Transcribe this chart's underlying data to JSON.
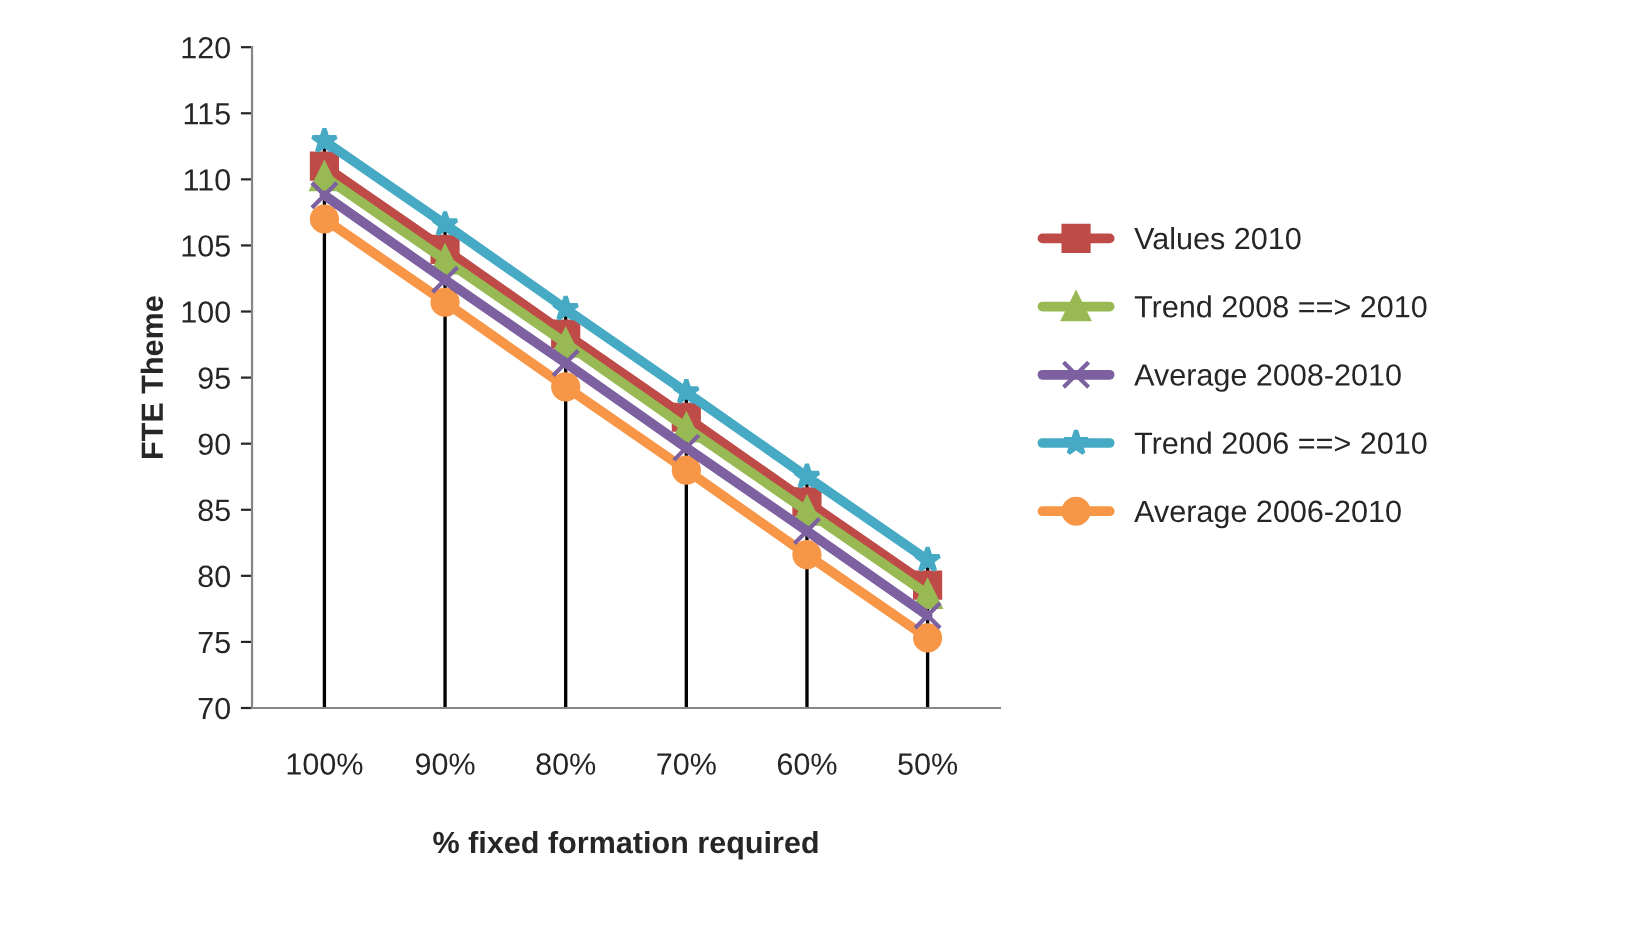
{
  "chart_data": {
    "type": "line",
    "xlabel": "% fixed formation required",
    "ylabel": "FTE Theme",
    "categories": [
      "100%",
      "90%",
      "80%",
      "70%",
      "60%",
      "50%"
    ],
    "ylim": [
      70,
      120
    ],
    "yticks": [
      70,
      75,
      80,
      85,
      90,
      95,
      100,
      105,
      110,
      115,
      120
    ],
    "grid": false,
    "legend": "right",
    "line_style": "solid",
    "series": [
      {
        "name": "Values 2010",
        "color": "#be4b48",
        "marker": "square",
        "values": [
          111,
          104.7,
          98.3,
          92,
          85.6,
          79.3
        ]
      },
      {
        "name": "Trend 2008 ==> 2010",
        "color": "#98b954",
        "marker": "triangle",
        "values": [
          110.2,
          103.9,
          97.6,
          91.2,
          84.9,
          78.6
        ]
      },
      {
        "name": "Average 2008-2010",
        "color": "#7d60a0",
        "marker": "cross",
        "values": [
          108.8,
          102.4,
          96.1,
          89.7,
          83.4,
          77
        ]
      },
      {
        "name": "Trend 2006 ==> 2010",
        "color": "#46aac5",
        "marker": "star",
        "values": [
          112.9,
          106.6,
          100.2,
          93.9,
          87.5,
          81.2
        ]
      },
      {
        "name": "Average 2006-2010",
        "color": "#f79646",
        "marker": "circle",
        "values": [
          107,
          100.7,
          94.3,
          88,
          81.6,
          75.3
        ]
      }
    ],
    "ref_lines": [
      {
        "axis": "x",
        "value": "100%",
        "color": "#000000"
      },
      {
        "axis": "x",
        "value": "90%",
        "color": "#000000"
      },
      {
        "axis": "x",
        "value": "80%",
        "color": "#000000"
      },
      {
        "axis": "x",
        "value": "70%",
        "color": "#000000"
      },
      {
        "axis": "x",
        "value": "60%",
        "color": "#000000"
      },
      {
        "axis": "x",
        "value": "50%",
        "color": "#000000"
      }
    ]
  }
}
